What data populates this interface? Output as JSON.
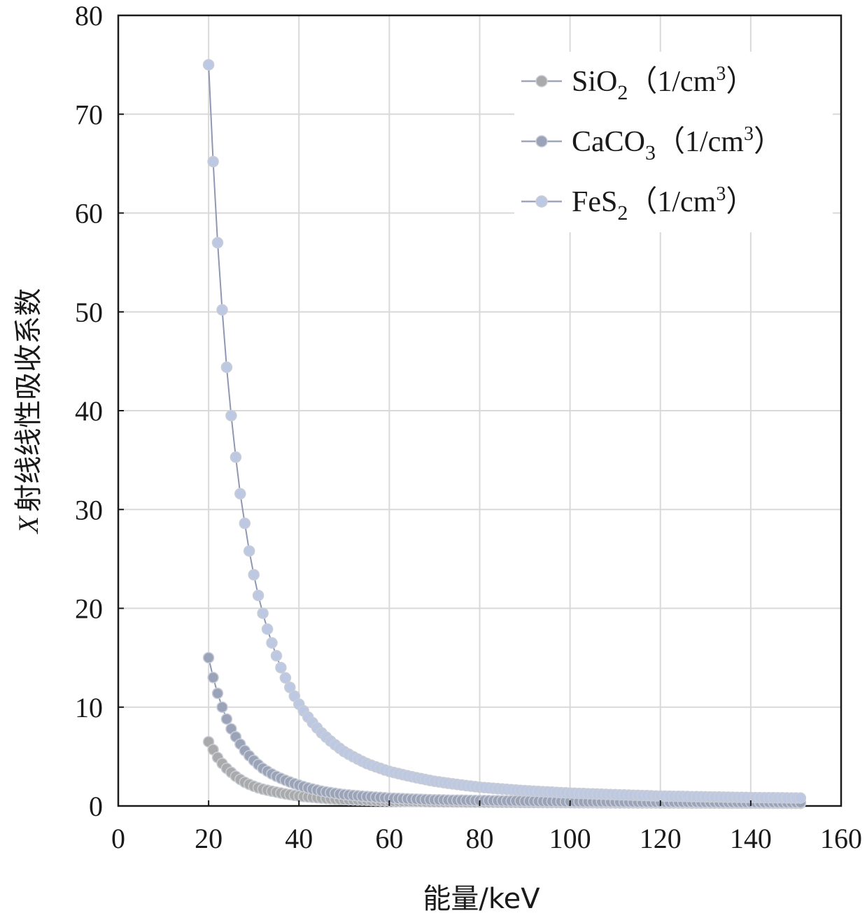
{
  "chart_data": {
    "type": "line",
    "title": "",
    "xlabel": "能量/keV",
    "ylabel_prefix": "X",
    "ylabel": "射线线性吸收系数",
    "xlim": [
      0,
      160
    ],
    "ylim": [
      0,
      80
    ],
    "xticks": [
      0,
      20,
      40,
      60,
      80,
      100,
      120,
      140,
      160
    ],
    "yticks": [
      0,
      10,
      20,
      30,
      40,
      50,
      60,
      70,
      80
    ],
    "grid": true,
    "legend_position": "top-right",
    "x_range": [
      20,
      151
    ],
    "x_step": 1,
    "series": [
      {
        "name": "SiO2（1/cm3）",
        "legend": {
          "main": "SiO",
          "sub": "2",
          "paren_open": "（1/cm",
          "sup": "3",
          "paren_close": "）"
        },
        "color": "#aaaaaa",
        "points": [
          [
            20,
            6.5
          ],
          [
            21,
            5.7
          ],
          [
            22,
            4.9
          ],
          [
            23,
            4.3
          ],
          [
            24,
            3.8
          ],
          [
            25,
            3.4
          ],
          [
            26,
            3.0
          ],
          [
            28,
            2.4
          ],
          [
            30,
            2.0
          ],
          [
            32,
            1.7
          ],
          [
            35,
            1.4
          ],
          [
            40,
            1.0
          ],
          [
            45,
            0.8
          ],
          [
            50,
            0.65
          ],
          [
            60,
            0.5
          ],
          [
            70,
            0.42
          ],
          [
            80,
            0.38
          ],
          [
            100,
            0.33
          ],
          [
            120,
            0.3
          ],
          [
            151,
            0.27
          ]
        ]
      },
      {
        "name": "CaCO3（1/cm3）",
        "legend": {
          "main": "CaCO",
          "sub": "3",
          "paren_open": "（1/cm",
          "sup": "3",
          "paren_close": "）"
        },
        "color": "#9aa3b8",
        "points": [
          [
            20,
            15.0
          ],
          [
            21,
            13.0
          ],
          [
            22,
            11.4
          ],
          [
            23,
            10.0
          ],
          [
            24,
            8.8
          ],
          [
            25,
            7.8
          ],
          [
            26,
            7.0
          ],
          [
            28,
            5.6
          ],
          [
            30,
            4.6
          ],
          [
            32,
            3.8
          ],
          [
            35,
            3.0
          ],
          [
            40,
            2.1
          ],
          [
            45,
            1.5
          ],
          [
            50,
            1.15
          ],
          [
            60,
            0.8
          ],
          [
            70,
            0.62
          ],
          [
            80,
            0.55
          ],
          [
            100,
            0.45
          ],
          [
            120,
            0.4
          ],
          [
            151,
            0.35
          ]
        ]
      },
      {
        "name": "FeS2（1/cm3）",
        "legend": {
          "main": "FeS",
          "sub": "2",
          "paren_open": "（1/cm",
          "sup": "3",
          "paren_close": "）"
        },
        "color": "#bdc9e2",
        "points": [
          [
            20,
            75.0
          ],
          [
            21,
            65.2
          ],
          [
            22,
            57.0
          ],
          [
            23,
            50.2
          ],
          [
            24,
            44.4
          ],
          [
            25,
            39.5
          ],
          [
            26,
            35.3
          ],
          [
            27,
            31.6
          ],
          [
            28,
            28.6
          ],
          [
            29,
            25.8
          ],
          [
            30,
            23.4
          ],
          [
            31,
            21.3
          ],
          [
            32,
            19.5
          ],
          [
            33,
            17.9
          ],
          [
            34,
            16.5
          ],
          [
            35,
            15.2
          ],
          [
            36,
            14.0
          ],
          [
            38,
            12.0
          ],
          [
            40,
            10.3
          ],
          [
            42,
            9.0
          ],
          [
            45,
            7.4
          ],
          [
            50,
            5.5
          ],
          [
            55,
            4.3
          ],
          [
            60,
            3.5
          ],
          [
            70,
            2.5
          ],
          [
            80,
            1.9
          ],
          [
            90,
            1.55
          ],
          [
            100,
            1.3
          ],
          [
            120,
            1.0
          ],
          [
            140,
            0.85
          ],
          [
            151,
            0.8
          ]
        ]
      }
    ]
  }
}
